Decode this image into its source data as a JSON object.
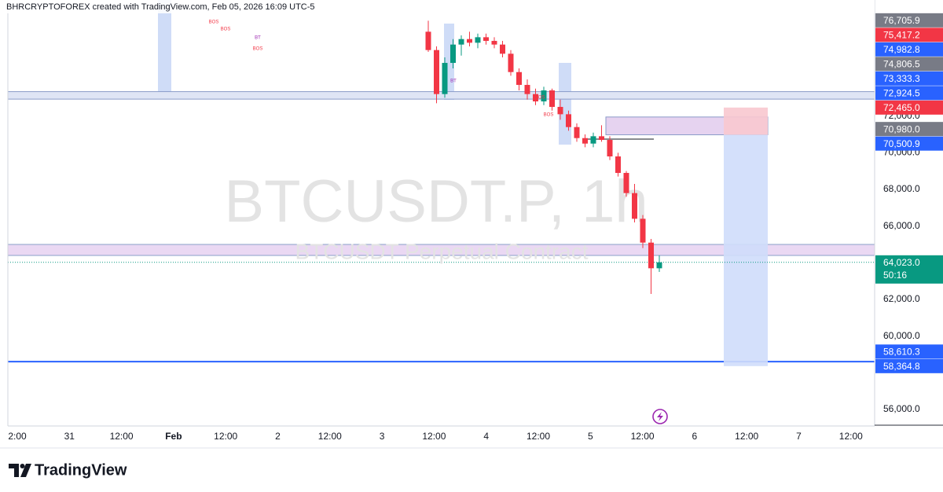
{
  "header": "BHRCRYPTOFOREX created with TradingView.com, Feb 05, 2026 16:09 UTC-5",
  "brand": "TradingView",
  "chart_data": {
    "type": "candlestick",
    "watermark": "BTCUSDT.P, 1h",
    "watermark_subtitle": "BTCUSDT Perpetual Contract",
    "up_color": "#089981",
    "down_color": "#f23645",
    "ylim": [
      55100,
      78330
    ],
    "yticks": [
      {
        "value": 56000,
        "label": "56,000.0"
      },
      {
        "value": 60000,
        "label": "60,000.0"
      },
      {
        "value": 62000,
        "label": "62,000.0"
      },
      {
        "value": 66000,
        "label": "66,000.0"
      },
      {
        "value": 68000,
        "label": "68,000.0"
      },
      {
        "value": 70000,
        "label": "70,000.0"
      },
      {
        "value": 72000,
        "label": "72,000.0"
      }
    ],
    "x_labels": [
      "2:00",
      "31",
      "12:00",
      "Feb",
      "12:00",
      "2",
      "12:00",
      "3",
      "12:00",
      "4",
      "12:00",
      "5",
      "12:00",
      "6",
      "12:00",
      "7",
      "12:00"
    ],
    "candles": [
      {
        "open": 76600,
        "high": 77200,
        "low": 75500,
        "close": 75600
      },
      {
        "open": 75600,
        "high": 75800,
        "low": 72700,
        "close": 73200
      },
      {
        "open": 73200,
        "high": 75200,
        "low": 73000,
        "close": 74900
      },
      {
        "open": 74900,
        "high": 76200,
        "low": 74600,
        "close": 75900
      },
      {
        "open": 75900,
        "high": 76400,
        "low": 75300,
        "close": 76200
      },
      {
        "open": 76200,
        "high": 76600,
        "low": 75800,
        "close": 76000
      },
      {
        "open": 76000,
        "high": 76500,
        "low": 75700,
        "close": 76300
      },
      {
        "open": 76300,
        "high": 76500,
        "low": 75900,
        "close": 76100
      },
      {
        "open": 76100,
        "high": 76300,
        "low": 75700,
        "close": 75900
      },
      {
        "open": 75900,
        "high": 76100,
        "low": 75200,
        "close": 75400
      },
      {
        "open": 75400,
        "high": 75600,
        "low": 74200,
        "close": 74400
      },
      {
        "open": 74400,
        "high": 74600,
        "low": 73400,
        "close": 73700
      },
      {
        "open": 73700,
        "high": 74000,
        "low": 72900,
        "close": 73200
      },
      {
        "open": 73200,
        "high": 73500,
        "low": 72600,
        "close": 72800
      },
      {
        "open": 72800,
        "high": 73600,
        "low": 72600,
        "close": 73400
      },
      {
        "open": 73400,
        "high": 73500,
        "low": 72300,
        "close": 72500
      },
      {
        "open": 72500,
        "high": 72900,
        "low": 71800,
        "close": 72100
      },
      {
        "open": 72100,
        "high": 72300,
        "low": 71200,
        "close": 71400
      },
      {
        "open": 71400,
        "high": 71600,
        "low": 70600,
        "close": 70800
      },
      {
        "open": 70800,
        "high": 71000,
        "low": 70300,
        "close": 70500
      },
      {
        "open": 70500,
        "high": 71100,
        "low": 70300,
        "close": 70900
      },
      {
        "open": 70900,
        "high": 71500,
        "low": 70600,
        "close": 70700
      },
      {
        "open": 70700,
        "high": 70900,
        "low": 69600,
        "close": 69800
      },
      {
        "open": 69800,
        "high": 70000,
        "low": 68700,
        "close": 68900
      },
      {
        "open": 68900,
        "high": 69000,
        "low": 67600,
        "close": 67800
      },
      {
        "open": 67800,
        "high": 68300,
        "low": 66200,
        "close": 66400
      },
      {
        "open": 66400,
        "high": 66600,
        "low": 64800,
        "close": 65100
      },
      {
        "open": 65100,
        "high": 65300,
        "low": 62300,
        "close": 63700
      },
      {
        "open": 63700,
        "high": 64400,
        "low": 63500,
        "close": 64023
      }
    ],
    "zones": [
      {
        "low": 72924.5,
        "high": 73333.3,
        "color": "#dfe5f5",
        "border": "#8a9bc8"
      },
      {
        "low": 64400,
        "high": 65000,
        "color": "#ead8f3",
        "border": "#8aa0c8"
      }
    ],
    "level_line": {
      "value": 58610.3,
      "color": "#2962ff"
    },
    "supply_box": {
      "low": 70980,
      "high": 71950,
      "color": "#e6d3f0",
      "border": "#8a9bc8"
    },
    "position": {
      "stop": 72465,
      "entry": 70980,
      "target": 58364.8,
      "stop_color": "#f8c8cf",
      "target_color": "#cfddfb"
    },
    "annotations": [
      "BOS",
      "BT",
      "BOS",
      "BOS",
      "BT",
      "BOS",
      "BOS"
    ],
    "current_price": {
      "value": 64023,
      "label": "64,023.0",
      "color": "#089981"
    },
    "countdown": "50:16",
    "price_labels": [
      {
        "value": 76705.9,
        "label": "76,705.9",
        "color": "#787b86"
      },
      {
        "value": 75417.2,
        "label": "75,417.2",
        "color": "#f23645"
      },
      {
        "value": 74982.8,
        "label": "74,982.8",
        "color": "#2962ff"
      },
      {
        "value": 74806.5,
        "label": "74,806.5",
        "color": "#787b86"
      },
      {
        "value": 73333.3,
        "label": "73,333.3",
        "color": "#2962ff"
      },
      {
        "value": 72924.5,
        "label": "72,924.5",
        "color": "#2962ff"
      },
      {
        "value": 72465,
        "label": "72,465.0",
        "color": "#f23645"
      },
      {
        "value": 70980,
        "label": "70,980.0",
        "color": "#787b86"
      },
      {
        "value": 70500.9,
        "label": "70,500.9",
        "color": "#2962ff"
      },
      {
        "value": 58610.3,
        "label": "58,610.3",
        "color": "#2962ff"
      },
      {
        "value": 58364.8,
        "label": "58,364.8",
        "color": "#2962ff"
      }
    ]
  }
}
